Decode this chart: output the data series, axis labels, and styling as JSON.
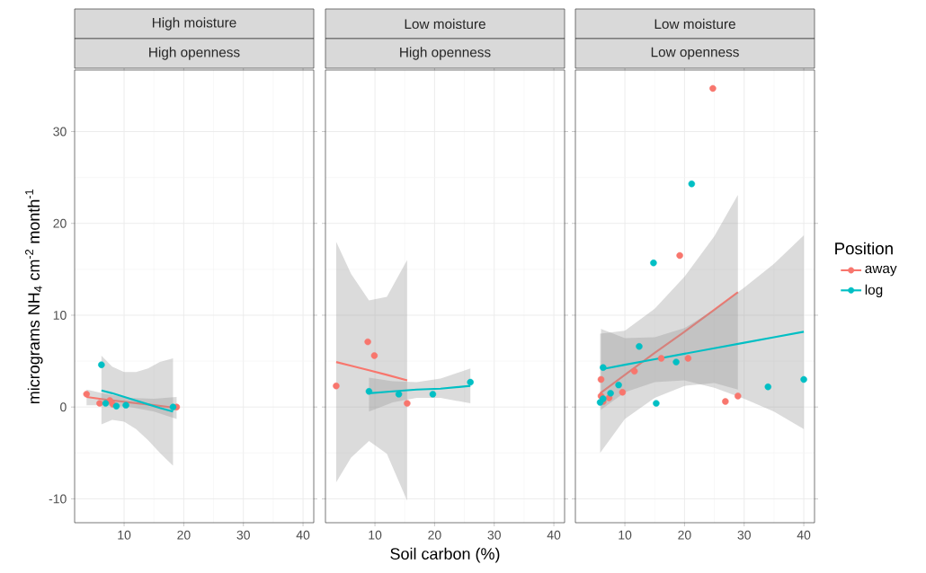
{
  "chart_data": [
    {
      "type": "scatter",
      "title": "High moisture",
      "subtitle": "High openness",
      "ylabel": "micrograms NH$_{4}$ cm$^{-2}$ month$^{-1}$",
      "xlim": [
        1.7,
        41.8
      ],
      "ylim": [
        -12.6,
        36.7
      ],
      "xticks": [
        10,
        20,
        30,
        40
      ],
      "yticks": [
        -10,
        0,
        10,
        20,
        30
      ],
      "grid": true,
      "series": [
        {
          "marker": "circle",
          "color": "#f8766d",
          "x": [
            3.7,
            5.9,
            7.6,
            8.1,
            18.8
          ],
          "values": [
            1.4,
            0.4,
            0.7,
            0.3,
            0.0
          ]
        },
        {
          "marker": "circle",
          "color": "#00bfc4",
          "x": [
            6.2,
            6.9,
            8.7,
            10.3,
            18.2
          ],
          "values": [
            4.6,
            0.4,
            0.1,
            0.2,
            0.0
          ]
        },
        {
          "type": "line",
          "marker": "none",
          "color": "#f8766d",
          "x": [
            3.7,
            7,
            11,
            15,
            18.8
          ],
          "values": [
            1.1,
            0.8,
            0.5,
            0.2,
            -0.1
          ],
          "lower": [
            0.2,
            0.2,
            0.0,
            -0.5,
            -1.3
          ],
          "upper": [
            1.9,
            1.4,
            1.0,
            0.9,
            1.1
          ]
        },
        {
          "type": "line",
          "marker": "none",
          "color": "#00bfc4",
          "x": [
            6.2,
            8,
            10,
            12,
            14,
            16,
            18.2
          ],
          "values": [
            1.8,
            1.5,
            1.1,
            0.7,
            0.3,
            -0.1,
            -0.5
          ],
          "lower": [
            -1.9,
            -1.4,
            -1.6,
            -2.4,
            -3.6,
            -5.0,
            -6.4
          ],
          "upper": [
            5.6,
            4.4,
            3.8,
            3.8,
            4.2,
            4.9,
            5.3
          ]
        }
      ]
    },
    {
      "type": "scatter",
      "title": "Low moisture",
      "subtitle": "High openness",
      "xlabel": "Soil carbon (%)",
      "xlim": [
        1.7,
        41.8
      ],
      "ylim": [
        -12.6,
        36.7
      ],
      "xticks": [
        10,
        20,
        30,
        40
      ],
      "yticks": [
        -10,
        0,
        10,
        20,
        30
      ],
      "grid": true,
      "tick_labels": "x",
      "series": [
        {
          "marker": "circle",
          "color": "#f8766d",
          "x": [
            3.5,
            8.8,
            9.9,
            15.4
          ],
          "values": [
            2.3,
            7.1,
            5.6,
            0.4
          ]
        },
        {
          "marker": "circle",
          "color": "#00bfc4",
          "x": [
            9.0,
            14.0,
            19.7,
            26.0
          ],
          "values": [
            1.7,
            1.4,
            1.4,
            2.7
          ]
        },
        {
          "type": "line",
          "marker": "none",
          "color": "#f8766d",
          "x": [
            3.5,
            6,
            9,
            12,
            15.4
          ],
          "values": [
            4.9,
            4.5,
            4.0,
            3.5,
            2.9
          ],
          "lower": [
            -8.2,
            -5.5,
            -3.7,
            -5.1,
            -10.2
          ],
          "upper": [
            18.0,
            14.5,
            11.6,
            12.0,
            16.0
          ]
        },
        {
          "type": "line",
          "marker": "none",
          "color": "#00bfc4",
          "x": [
            9,
            13,
            17,
            21,
            26
          ],
          "values": [
            1.5,
            1.7,
            1.9,
            2.0,
            2.3
          ],
          "lower": [
            -0.5,
            0.5,
            1.0,
            1.0,
            0.4
          ],
          "upper": [
            3.2,
            2.8,
            2.7,
            3.1,
            4.2
          ]
        }
      ]
    },
    {
      "type": "scatter",
      "title": "Low moisture",
      "subtitle": "Low openness",
      "xlim": [
        1.7,
        41.8
      ],
      "ylim": [
        -12.6,
        36.7
      ],
      "xticks": [
        10,
        20,
        30,
        40
      ],
      "yticks": [
        -10,
        0,
        10,
        20,
        30
      ],
      "grid": true,
      "tick_labels": "x",
      "legend": "right",
      "legend_title": "Position",
      "series": [
        {
          "name": "away",
          "marker": "circle",
          "color": "#f8766d",
          "x": [
            24.75,
            19.2,
            6.0,
            6.0,
            6.35,
            7.35,
            9.6,
            11.6,
            16.1,
            20.6,
            26.85,
            28.95
          ],
          "values": [
            34.7,
            16.5,
            3.0,
            1.2,
            0.6,
            1.0,
            1.6,
            3.9,
            5.3,
            5.3,
            0.6,
            1.2
          ]
        },
        {
          "name": "log",
          "marker": "circle",
          "color": "#00bfc4",
          "x": [
            21.2,
            14.8,
            6.35,
            5.85,
            6.35,
            7.6,
            8.95,
            12.4,
            18.6,
            15.25,
            34.0,
            40.0
          ],
          "values": [
            24.3,
            15.7,
            4.3,
            0.5,
            0.9,
            1.5,
            2.4,
            6.6,
            4.9,
            0.4,
            2.2,
            3.0
          ]
        },
        {
          "type": "line",
          "marker": "none",
          "color": "#f8766d",
          "x": [
            5.85,
            10,
            15,
            20,
            25,
            28.95
          ],
          "values": [
            1.5,
            3.5,
            5.9,
            8.2,
            10.6,
            12.5
          ],
          "lower": [
            -5.0,
            -1.3,
            1.0,
            2.3,
            2.6,
            1.9
          ],
          "upper": [
            8.0,
            8.3,
            10.7,
            14.2,
            18.6,
            23.1
          ]
        },
        {
          "type": "line",
          "marker": "none",
          "color": "#00bfc4",
          "x": [
            6,
            10,
            15,
            20,
            25,
            30,
            35,
            40
          ],
          "values": [
            4.1,
            4.6,
            5.2,
            5.8,
            6.4,
            7.0,
            7.6,
            8.2
          ],
          "lower": [
            -0.3,
            1.6,
            2.7,
            2.9,
            2.1,
            0.9,
            -0.5,
            -2.4
          ],
          "upper": [
            8.5,
            7.5,
            7.6,
            8.6,
            10.6,
            13.0,
            15.6,
            18.7
          ]
        }
      ]
    }
  ]
}
